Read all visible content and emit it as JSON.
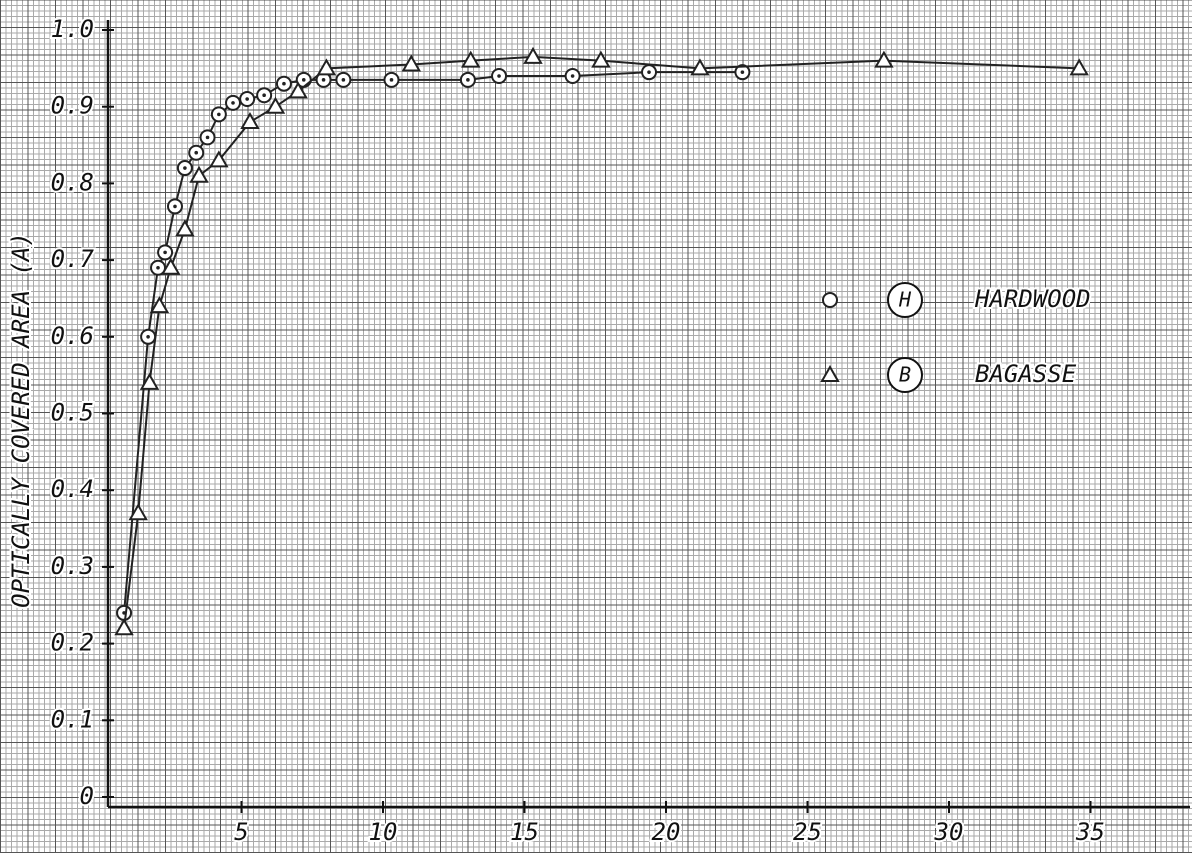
{
  "chart_data": {
    "type": "scatter",
    "y_label": "OPTICALLY COVERED AREA (A)",
    "xlim": [
      0,
      38
    ],
    "ylim": [
      0,
      1
    ],
    "xticks": [
      5,
      10,
      15,
      20,
      25,
      30,
      35
    ],
    "yticks": [
      0,
      0.1,
      0.2,
      0.3,
      0.4,
      0.5,
      0.6,
      0.7,
      0.8,
      0.9,
      {
        "value": 1,
        "label": "1.0"
      }
    ],
    "series": [
      {
        "name": "HARDWOOD",
        "letter": "H",
        "marker": "circle",
        "color": "#222222",
        "x": [
          0.85,
          1.7,
          2.05,
          2.3,
          2.65,
          3.0,
          3.4,
          3.8,
          4.2,
          4.7,
          5.2,
          5.8,
          6.5,
          7.2,
          7.9,
          8.6,
          10.3,
          13.0,
          14.1,
          16.7,
          19.4,
          22.7
        ],
        "y": [
          0.24,
          0.6,
          0.69,
          0.71,
          0.77,
          0.82,
          0.84,
          0.86,
          0.89,
          0.905,
          0.91,
          0.915,
          0.93,
          0.935,
          0.935,
          0.935,
          0.935,
          0.935,
          0.94,
          0.94,
          0.945,
          0.945
        ]
      },
      {
        "name": "BAGASSE",
        "letter": "B",
        "marker": "triangle",
        "color": "#222222",
        "x": [
          0.85,
          1.35,
          1.75,
          2.1,
          2.5,
          3.0,
          3.5,
          4.2,
          5.3,
          6.2,
          7.0,
          8.0,
          11.0,
          13.1,
          15.3,
          17.7,
          21.2,
          27.7,
          34.6
        ],
        "y": [
          0.22,
          0.37,
          0.54,
          0.64,
          0.69,
          0.74,
          0.81,
          0.83,
          0.88,
          0.9,
          0.92,
          0.95,
          0.955,
          0.96,
          0.965,
          0.96,
          0.95,
          0.96,
          0.95
        ]
      }
    ]
  }
}
